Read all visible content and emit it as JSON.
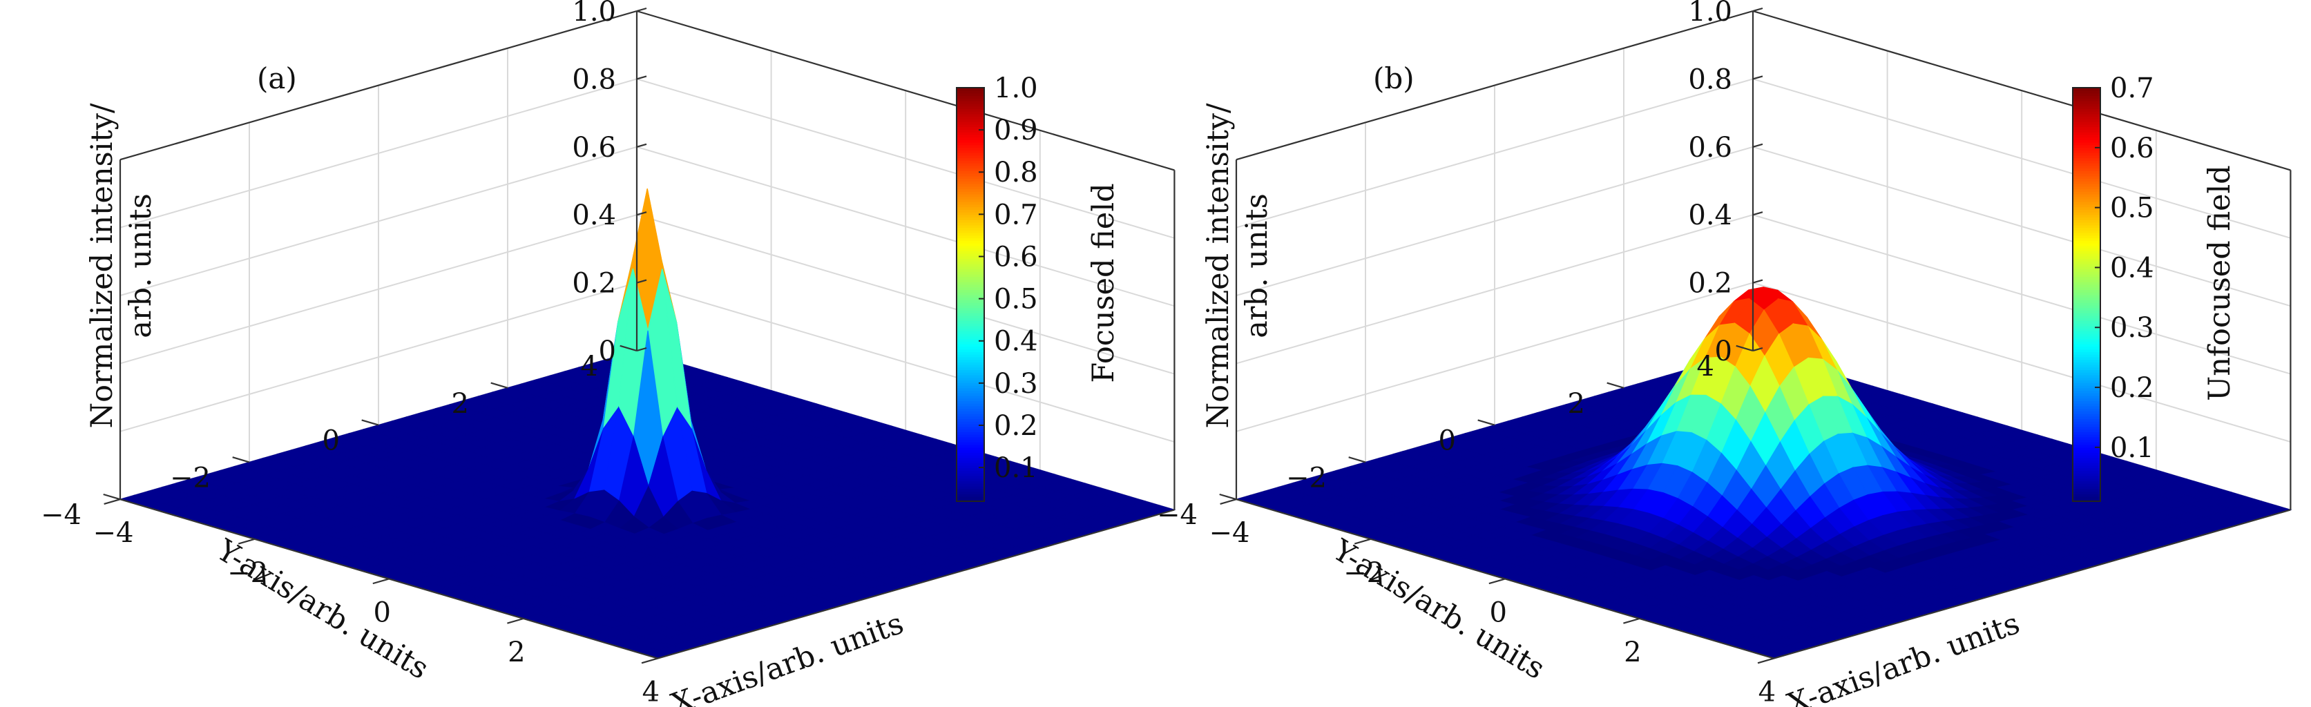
{
  "colors": {
    "background": "#ffffff",
    "floor": "#00008f",
    "axis_line": "#333333",
    "grid": "#d9d9d9",
    "colormap": "jet"
  },
  "chart_data": [
    {
      "type": "surface",
      "panel_label": "(a)",
      "zlabel_line1": "Normalized intensity/",
      "zlabel_line2": "arb. units",
      "xlabel": "X-axis/arb. units",
      "ylabel": "Y-axis/arb. units",
      "colorbar_label": "Focused field",
      "xlim": [
        -4,
        4
      ],
      "ylim": [
        -4,
        4
      ],
      "zlim": [
        0,
        1.0
      ],
      "x_ticks": [
        "−4",
        "−2",
        "0",
        "2",
        "4"
      ],
      "y_ticks": [
        "4",
        "2",
        "0",
        "−2",
        "−4"
      ],
      "z_ticks": [
        "0",
        "0.2",
        "0.4",
        "0.6",
        "0.8",
        "1.0"
      ],
      "colorbar_range": [
        0.02,
        1.0
      ],
      "colorbar_ticks": [
        "0.1",
        "0.2",
        "0.3",
        "0.4",
        "0.5",
        "0.6",
        "0.7",
        "0.8",
        "0.9",
        "1.0"
      ],
      "surface": {
        "function": "gaussian",
        "center": [
          0,
          0
        ],
        "peak": 0.93,
        "sigma": 0.3
      }
    },
    {
      "type": "surface",
      "panel_label": "(b)",
      "zlabel_line1": "Normalized intensity/",
      "zlabel_line2": "arb. units",
      "xlabel": "X-axis/arb. units",
      "ylabel": "Y-axis/arb. units",
      "colorbar_label": "Unfocused field",
      "xlim": [
        -4,
        4
      ],
      "ylim": [
        -4,
        4
      ],
      "zlim": [
        0,
        1.0
      ],
      "x_ticks": [
        "−4",
        "−2",
        "0",
        "2",
        "4"
      ],
      "y_ticks": [
        "4",
        "2",
        "0",
        "−2",
        "−4"
      ],
      "z_ticks": [
        "0",
        "0.2",
        "0.4",
        "0.6",
        "0.8",
        "1.0"
      ],
      "colorbar_range": [
        0.01,
        0.7
      ],
      "colorbar_ticks": [
        "0.1",
        "0.2",
        "0.3",
        "0.4",
        "0.5",
        "0.6",
        "0.7"
      ],
      "surface": {
        "function": "gaussian",
        "center": [
          0,
          0
        ],
        "peak": 0.64,
        "sigma": 0.85
      }
    }
  ]
}
